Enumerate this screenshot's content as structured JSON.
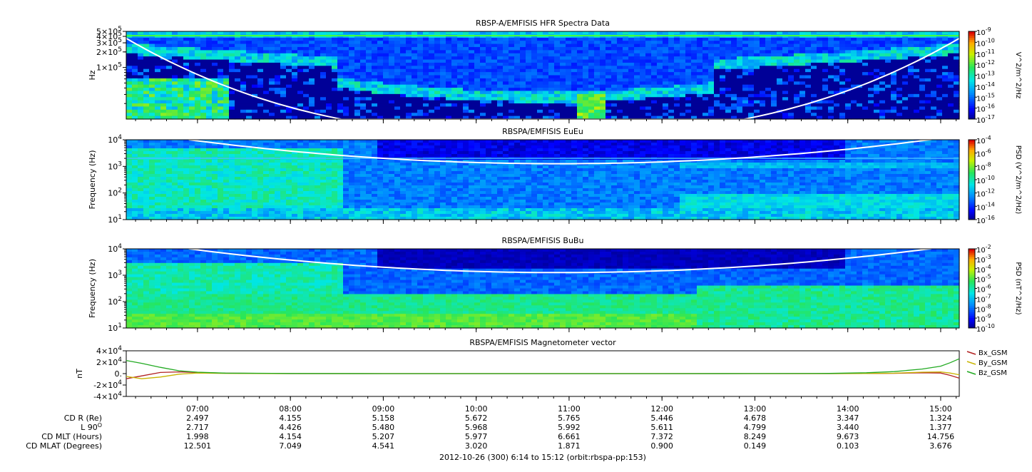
{
  "chart_data": [
    {
      "type": "heatmap",
      "title": "RBSP-A/EMFISIS  HFR Spectra Data",
      "ylabel": "Hz",
      "yscale": "log",
      "ylim": [
        10000,
        500000
      ],
      "ytick_labels": [
        {
          "value": 500000,
          "label": "5×10",
          "exp": "5"
        },
        {
          "value": 400000,
          "label": "4×10",
          "exp": "5"
        },
        {
          "value": 300000,
          "label": "3×10",
          "exp": "5"
        },
        {
          "value": 200000,
          "label": "2×10",
          "exp": "5"
        },
        {
          "value": 100000,
          "label": "1×10",
          "exp": "5"
        }
      ],
      "colorbar": {
        "label": "V^2/m^2/Hz",
        "range_exp": [
          -17,
          -9
        ],
        "ticks": [
          {
            "label": "10",
            "exp": "-9"
          },
          {
            "label": "10",
            "exp": "-10"
          },
          {
            "label": "10",
            "exp": "-11"
          },
          {
            "label": "10",
            "exp": "-12"
          },
          {
            "label": "10",
            "exp": "-13"
          },
          {
            "label": "10",
            "exp": "-14"
          },
          {
            "label": "10",
            "exp": "-15"
          },
          {
            "label": "10",
            "exp": "-16"
          },
          {
            "label": "10",
            "exp": "-17"
          }
        ]
      },
      "overlay_line_color": "#ffffff"
    },
    {
      "type": "heatmap",
      "title": "RBSPA/EMFISIS  EuEu",
      "ylabel": "Frequency (Hz)",
      "yscale": "log",
      "ylim": [
        10,
        10000
      ],
      "ytick_labels": [
        {
          "value": 10000,
          "label": "10",
          "exp": "4"
        },
        {
          "value": 1000,
          "label": "10",
          "exp": "3"
        },
        {
          "value": 100,
          "label": "10",
          "exp": "2"
        },
        {
          "value": 10,
          "label": "10",
          "exp": "1"
        }
      ],
      "colorbar": {
        "label": "PSD (V^2/m^2/Hz)",
        "range_exp": [
          -16,
          -4
        ],
        "ticks": [
          {
            "label": "10",
            "exp": "-4"
          },
          {
            "label": "10",
            "exp": "-6"
          },
          {
            "label": "10",
            "exp": "-8"
          },
          {
            "label": "10",
            "exp": "-10"
          },
          {
            "label": "10",
            "exp": "-12"
          },
          {
            "label": "10",
            "exp": "-14"
          },
          {
            "label": "10",
            "exp": "-16"
          }
        ]
      },
      "overlay_line_color": "#ffffff"
    },
    {
      "type": "heatmap",
      "title": "RBSPA/EMFISIS  BuBu",
      "ylabel": "Frequency (Hz)",
      "yscale": "log",
      "ylim": [
        10,
        10000
      ],
      "ytick_labels": [
        {
          "value": 10000,
          "label": "10",
          "exp": "4"
        },
        {
          "value": 1000,
          "label": "10",
          "exp": "3"
        },
        {
          "value": 100,
          "label": "10",
          "exp": "2"
        },
        {
          "value": 10,
          "label": "10",
          "exp": "1"
        }
      ],
      "colorbar": {
        "label": "PSD (nT^2/Hz)",
        "range_exp": [
          -10,
          -2
        ],
        "ticks": [
          {
            "label": "10",
            "exp": "-2"
          },
          {
            "label": "10",
            "exp": "-3"
          },
          {
            "label": "10",
            "exp": "-4"
          },
          {
            "label": "10",
            "exp": "-5"
          },
          {
            "label": "10",
            "exp": "-6"
          },
          {
            "label": "10",
            "exp": "-7"
          },
          {
            "label": "10",
            "exp": "-8"
          },
          {
            "label": "10",
            "exp": "-9"
          },
          {
            "label": "10",
            "exp": "-10"
          }
        ]
      },
      "overlay_line_color": "#ffffff"
    },
    {
      "type": "line",
      "title": "RBSPA/EMFISIS  Magnetometer vector",
      "ylabel": "nT",
      "ylim": [
        -40000,
        40000
      ],
      "ytick_labels": [
        {
          "value": 40000,
          "label": "4×10",
          "exp": "4"
        },
        {
          "value": 20000,
          "label": "2×10",
          "exp": "4"
        },
        {
          "value": 0,
          "label": "0.",
          "exp": ""
        },
        {
          "value": -20000,
          "label": "-2×10",
          "exp": "4"
        },
        {
          "value": -40000,
          "label": "-4×10",
          "exp": "4"
        }
      ],
      "x": [
        6.233,
        6.4,
        6.6,
        6.8,
        7.0,
        7.3,
        8.0,
        9.0,
        10.0,
        11.0,
        12.0,
        13.0,
        13.8,
        14.2,
        14.5,
        14.8,
        15.0,
        15.1,
        15.2
      ],
      "series": [
        {
          "name": "Bx_GSM",
          "color": "#b22222",
          "values": [
            -9000,
            -4000,
            2000,
            3000,
            2000,
            800,
            0,
            0,
            0,
            0,
            0,
            0,
            0,
            100,
            500,
            1500,
            1000,
            -3000,
            -8000
          ]
        },
        {
          "name": "By_GSM",
          "color": "#c8b400",
          "values": [
            -5000,
            -9000,
            -6000,
            -1000,
            1000,
            400,
            0,
            0,
            0,
            0,
            0,
            0,
            0,
            100,
            800,
            2500,
            3000,
            1000,
            -2000
          ]
        },
        {
          "name": "Bz_GSM",
          "color": "#22aa22",
          "values": [
            23000,
            18000,
            11000,
            5000,
            2500,
            900,
            200,
            0,
            0,
            0,
            0,
            100,
            400,
            1500,
            3500,
            8000,
            13000,
            19000,
            26000
          ]
        }
      ]
    }
  ],
  "time_axis": {
    "xlim_hours": [
      6.233,
      15.2
    ],
    "tick_hours": [
      7,
      8,
      9,
      10,
      11,
      12,
      13,
      14,
      15
    ],
    "tick_labels": [
      "07:00",
      "08:00",
      "09:00",
      "10:00",
      "11:00",
      "12:00",
      "13:00",
      "14:00",
      "15:00"
    ]
  },
  "ephemeris": {
    "rows": [
      {
        "label": "CD R (Re)",
        "values": [
          "2.497",
          "4.155",
          "5.158",
          "5.672",
          "5.765",
          "5.446",
          "4.678",
          "3.347",
          "1.324"
        ]
      },
      {
        "label": "L 90",
        "label_sup": "O",
        "values": [
          "2.717",
          "4.426",
          "5.480",
          "5.968",
          "5.992",
          "5.611",
          "4.799",
          "3.440",
          "1.377"
        ]
      },
      {
        "label": "CD MLT (Hours)",
        "values": [
          "1.998",
          "4.154",
          "5.207",
          "5.977",
          "6.661",
          "7.372",
          "8.249",
          "9.673",
          "14.756"
        ]
      },
      {
        "label": "CD MLAT (Degrees)",
        "values": [
          "12.501",
          "7.049",
          "4.541",
          "3.020",
          "1.871",
          "0.900",
          "0.149",
          "0.103",
          "3.676"
        ]
      }
    ]
  },
  "footer": {
    "text": "2012-10-26 (300) 6:14 to 15:12 (orbit:rbspa-pp:153)"
  }
}
